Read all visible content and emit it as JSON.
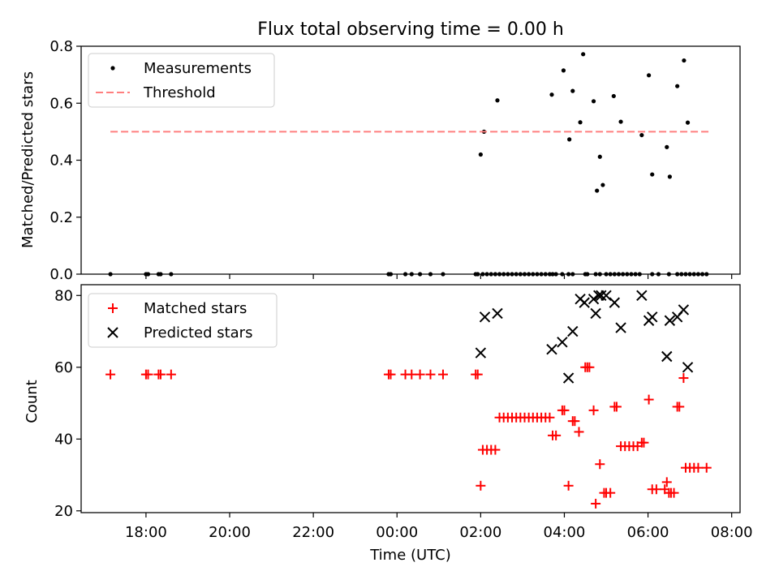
{
  "title": "Flux total observing time = 0.00 h",
  "chart_data": [
    {
      "type": "scatter",
      "panel": "top",
      "xlabel": "",
      "ylabel": "Matched/Predicted stars",
      "xlim": [
        16.45,
        32.2
      ],
      "ylim": [
        0,
        0.8
      ],
      "yticks": [
        "0.0",
        "0.2",
        "0.4",
        "0.6",
        "0.8"
      ],
      "legend_position": "upper-left",
      "series": [
        {
          "name": "Measurements",
          "color": "#000000",
          "marker": "dot",
          "points": [
            [
              17.15,
              0
            ],
            [
              18.0,
              0
            ],
            [
              18.05,
              0
            ],
            [
              18.3,
              0
            ],
            [
              18.35,
              0
            ],
            [
              18.6,
              0
            ],
            [
              23.8,
              0
            ],
            [
              23.85,
              0
            ],
            [
              24.2,
              0
            ],
            [
              24.35,
              0
            ],
            [
              24.55,
              0
            ],
            [
              24.8,
              0
            ],
            [
              25.1,
              0
            ],
            [
              25.88,
              0
            ],
            [
              25.93,
              0
            ],
            [
              26.05,
              0
            ],
            [
              26.15,
              0
            ],
            [
              26.25,
              0
            ],
            [
              26.35,
              0
            ],
            [
              26.45,
              0
            ],
            [
              26.55,
              0
            ],
            [
              26.65,
              0
            ],
            [
              26.75,
              0
            ],
            [
              26.85,
              0
            ],
            [
              26.95,
              0
            ],
            [
              27.05,
              0
            ],
            [
              27.15,
              0
            ],
            [
              27.25,
              0
            ],
            [
              27.35,
              0
            ],
            [
              27.45,
              0
            ],
            [
              27.55,
              0
            ],
            [
              27.65,
              0
            ],
            [
              27.72,
              0
            ],
            [
              27.8,
              0
            ],
            [
              27.95,
              0
            ],
            [
              28.1,
              0
            ],
            [
              28.2,
              0
            ],
            [
              28.5,
              0
            ],
            [
              28.55,
              0
            ],
            [
              28.75,
              0
            ],
            [
              28.85,
              0
            ],
            [
              29.0,
              0
            ],
            [
              29.1,
              0
            ],
            [
              29.2,
              0
            ],
            [
              29.3,
              0
            ],
            [
              29.4,
              0
            ],
            [
              29.5,
              0
            ],
            [
              29.6,
              0
            ],
            [
              29.7,
              0
            ],
            [
              29.8,
              0
            ],
            [
              30.1,
              0
            ],
            [
              30.25,
              0
            ],
            [
              30.5,
              0
            ],
            [
              30.7,
              0
            ],
            [
              30.8,
              0
            ],
            [
              30.9,
              0
            ],
            [
              31.0,
              0
            ],
            [
              31.1,
              0
            ],
            [
              31.2,
              0
            ],
            [
              31.3,
              0
            ],
            [
              31.4,
              0
            ],
            [
              26.0,
              0.42
            ],
            [
              26.08,
              0.5
            ],
            [
              26.4,
              0.61
            ],
            [
              27.7,
              0.63
            ],
            [
              27.98,
              0.715
            ],
            [
              28.12,
              0.473
            ],
            [
              28.2,
              0.643
            ],
            [
              28.38,
              0.533
            ],
            [
              28.45,
              0.772
            ],
            [
              28.7,
              0.607
            ],
            [
              28.78,
              0.293
            ],
            [
              28.85,
              0.412
            ],
            [
              28.92,
              0.313
            ],
            [
              29.18,
              0.625
            ],
            [
              29.35,
              0.535
            ],
            [
              29.85,
              0.488
            ],
            [
              30.02,
              0.698
            ],
            [
              30.1,
              0.35
            ],
            [
              30.45,
              0.446
            ],
            [
              30.52,
              0.342
            ],
            [
              30.7,
              0.66
            ],
            [
              30.86,
              0.75
            ],
            [
              30.95,
              0.532
            ]
          ]
        },
        {
          "name": "Threshold",
          "color": "#ff7f7f",
          "style": "dashed",
          "points": [
            [
              17.15,
              0.5
            ],
            [
              31.45,
              0.5
            ]
          ]
        }
      ]
    },
    {
      "type": "scatter",
      "panel": "bottom",
      "xlabel": "Time (UTC)",
      "ylabel": "Count",
      "xlim": [
        16.45,
        32.2
      ],
      "ylim": [
        19.5,
        83
      ],
      "yticks": [
        "20",
        "40",
        "60",
        "80"
      ],
      "xticks": [
        {
          "value": 18,
          "label": "18:00"
        },
        {
          "value": 20,
          "label": "20:00"
        },
        {
          "value": 22,
          "label": "22:00"
        },
        {
          "value": 24,
          "label": "00:00"
        },
        {
          "value": 26,
          "label": "02:00"
        },
        {
          "value": 28,
          "label": "04:00"
        },
        {
          "value": 30,
          "label": "06:00"
        },
        {
          "value": 32,
          "label": "08:00"
        }
      ],
      "legend_position": "upper-left",
      "series": [
        {
          "name": "Matched stars",
          "color": "#ff0000",
          "marker": "plus",
          "points": [
            [
              17.15,
              58
            ],
            [
              18.0,
              58
            ],
            [
              18.05,
              58
            ],
            [
              18.3,
              58
            ],
            [
              18.35,
              58
            ],
            [
              18.6,
              58
            ],
            [
              23.8,
              58
            ],
            [
              23.85,
              58
            ],
            [
              24.2,
              58
            ],
            [
              24.35,
              58
            ],
            [
              24.55,
              58
            ],
            [
              24.8,
              58
            ],
            [
              25.1,
              58
            ],
            [
              25.88,
              58
            ],
            [
              25.93,
              58
            ],
            [
              26.0,
              27
            ],
            [
              26.05,
              37
            ],
            [
              26.15,
              37
            ],
            [
              26.25,
              37
            ],
            [
              26.35,
              37
            ],
            [
              26.45,
              46
            ],
            [
              26.55,
              46
            ],
            [
              26.65,
              46
            ],
            [
              26.75,
              46
            ],
            [
              26.85,
              46
            ],
            [
              26.95,
              46
            ],
            [
              27.05,
              46
            ],
            [
              27.15,
              46
            ],
            [
              27.25,
              46
            ],
            [
              27.35,
              46
            ],
            [
              27.45,
              46
            ],
            [
              27.55,
              46
            ],
            [
              27.65,
              46
            ],
            [
              27.72,
              41
            ],
            [
              27.8,
              41
            ],
            [
              27.95,
              48
            ],
            [
              28.0,
              48
            ],
            [
              28.1,
              27
            ],
            [
              28.2,
              45
            ],
            [
              28.25,
              45
            ],
            [
              28.35,
              42
            ],
            [
              28.5,
              60
            ],
            [
              28.55,
              60
            ],
            [
              28.6,
              60
            ],
            [
              28.7,
              48
            ],
            [
              28.75,
              22
            ],
            [
              28.85,
              33
            ],
            [
              28.95,
              25
            ],
            [
              29.0,
              25
            ],
            [
              29.1,
              25
            ],
            [
              29.2,
              49
            ],
            [
              29.25,
              49
            ],
            [
              29.35,
              38
            ],
            [
              29.45,
              38
            ],
            [
              29.55,
              38
            ],
            [
              29.65,
              38
            ],
            [
              29.75,
              38
            ],
            [
              29.85,
              39
            ],
            [
              29.9,
              39
            ],
            [
              30.02,
              51
            ],
            [
              30.1,
              26
            ],
            [
              30.2,
              26
            ],
            [
              30.4,
              26
            ],
            [
              30.45,
              28
            ],
            [
              30.5,
              25
            ],
            [
              30.55,
              25
            ],
            [
              30.62,
              25
            ],
            [
              30.7,
              49
            ],
            [
              30.75,
              49
            ],
            [
              30.85,
              57
            ],
            [
              30.9,
              32
            ],
            [
              31.0,
              32
            ],
            [
              31.1,
              32
            ],
            [
              31.2,
              32
            ],
            [
              31.4,
              32
            ]
          ]
        },
        {
          "name": "Predicted stars",
          "color": "#000000",
          "marker": "x",
          "points": [
            [
              26.0,
              64
            ],
            [
              26.1,
              74
            ],
            [
              26.4,
              75
            ],
            [
              27.7,
              65
            ],
            [
              27.95,
              67
            ],
            [
              28.1,
              57
            ],
            [
              28.2,
              70
            ],
            [
              28.38,
              79
            ],
            [
              28.48,
              78
            ],
            [
              28.7,
              79
            ],
            [
              28.75,
              75
            ],
            [
              28.82,
              80
            ],
            [
              28.88,
              80
            ],
            [
              29.0,
              80
            ],
            [
              29.2,
              78
            ],
            [
              29.35,
              71
            ],
            [
              29.85,
              80
            ],
            [
              30.02,
              73
            ],
            [
              30.1,
              74
            ],
            [
              30.45,
              63
            ],
            [
              30.52,
              73
            ],
            [
              30.7,
              74
            ],
            [
              30.85,
              76
            ],
            [
              30.95,
              60
            ]
          ]
        }
      ]
    }
  ]
}
